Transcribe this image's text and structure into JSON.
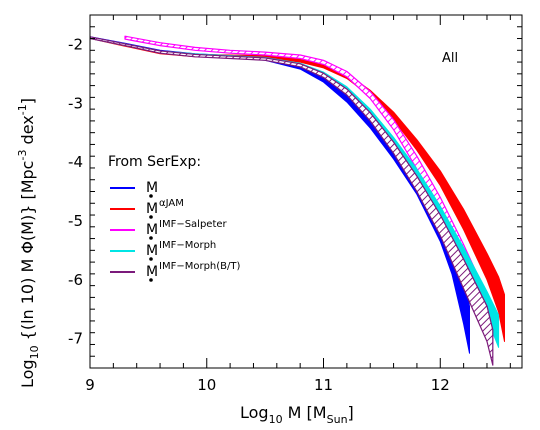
{
  "chart_data": {
    "type": "area",
    "panel_label": "All",
    "xlabel": {
      "base": "Log",
      "sub": "10",
      "rest": " M [M",
      "unit_sub": "Sun",
      "close": "]"
    },
    "ylabel": {
      "base": "Log",
      "sub": "10",
      "rest": " {(ln 10)  M  Φ(M)} [Mpc",
      "sup": "-3",
      "close": " dex",
      "sup2": "-1",
      "end": "]"
    },
    "xlim": [
      9.0,
      12.7
    ],
    "ylim": [
      -7.5,
      -1.5
    ],
    "xticks": [
      9,
      10,
      11,
      12
    ],
    "xtick_labels": [
      "9",
      "10",
      "11",
      "12"
    ],
    "yticks": [
      -2,
      -3,
      -4,
      -5,
      -6,
      -7
    ],
    "ytick_labels": [
      "-2",
      "-3",
      "-4",
      "-5",
      "-6",
      "-7"
    ],
    "legend_title": "From SerExp:",
    "legend_position": "left-middle",
    "series": [
      {
        "name": "M*",
        "label_main": "M",
        "label_sup": "",
        "color": "#0000ff",
        "style": "solid",
        "x": [
          9.0,
          9.3,
          9.6,
          9.9,
          10.2,
          10.5,
          10.8,
          11.0,
          11.2,
          11.4,
          11.6,
          11.8,
          12.0,
          12.1,
          12.2,
          12.25
        ],
        "upper": [
          -1.87,
          -1.98,
          -2.1,
          -2.16,
          -2.19,
          -2.24,
          -2.37,
          -2.55,
          -2.85,
          -3.22,
          -3.66,
          -4.15,
          -4.82,
          -5.28,
          -5.95,
          -6.45
        ],
        "lower": [
          -1.89,
          -2.0,
          -2.12,
          -2.18,
          -2.22,
          -2.27,
          -2.42,
          -2.64,
          -2.98,
          -3.42,
          -3.95,
          -4.55,
          -5.35,
          -5.9,
          -6.75,
          -7.25
        ]
      },
      {
        "name": "M*αJAM",
        "label_main": "M",
        "label_sup": "αJAM",
        "color": "#ff0000",
        "style": "solid",
        "x": [
          9.0,
          9.3,
          9.6,
          9.9,
          10.2,
          10.5,
          10.8,
          11.0,
          11.2,
          11.4,
          11.6,
          11.8,
          12.0,
          12.2,
          12.4,
          12.5,
          12.55
        ],
        "upper": [
          -1.88,
          -2.0,
          -2.12,
          -2.17,
          -2.18,
          -2.19,
          -2.25,
          -2.33,
          -2.5,
          -2.78,
          -3.15,
          -3.62,
          -4.15,
          -4.8,
          -5.55,
          -5.95,
          -6.25
        ],
        "lower": [
          -1.9,
          -2.03,
          -2.16,
          -2.21,
          -2.22,
          -2.23,
          -2.3,
          -2.4,
          -2.58,
          -2.88,
          -3.28,
          -3.8,
          -4.4,
          -5.15,
          -6.0,
          -6.55,
          -7.05
        ]
      },
      {
        "name": "M*IMF-Salpeter",
        "label_main": "M",
        "label_sup": "IMF−Salpeter",
        "color": "#ff00ff",
        "style": "hatched",
        "x": [
          9.3,
          9.6,
          9.9,
          10.2,
          10.5,
          10.8,
          11.0,
          11.2,
          11.4,
          11.6,
          11.8,
          12.0,
          12.2,
          12.35,
          12.45
        ],
        "upper": [
          -1.86,
          -1.97,
          -2.05,
          -2.1,
          -2.13,
          -2.18,
          -2.27,
          -2.46,
          -2.8,
          -3.28,
          -3.9,
          -4.6,
          -5.4,
          -6.05,
          -6.55
        ],
        "lower": [
          -1.91,
          -2.02,
          -2.1,
          -2.15,
          -2.18,
          -2.24,
          -2.34,
          -2.55,
          -2.92,
          -3.45,
          -4.12,
          -4.9,
          -5.8,
          -6.55,
          -7.1
        ]
      },
      {
        "name": "M*IMF-Morph",
        "label_main": "M",
        "label_sup": "IMF−Morph",
        "color": "#00e5e5",
        "style": "solid",
        "x": [
          9.0,
          9.3,
          9.6,
          9.9,
          10.2,
          10.5,
          10.8,
          11.0,
          11.2,
          11.4,
          11.6,
          11.8,
          12.0,
          12.2,
          12.4,
          12.5
        ],
        "upper": [
          -1.88,
          -1.99,
          -2.11,
          -2.16,
          -2.19,
          -2.22,
          -2.32,
          -2.47,
          -2.72,
          -3.1,
          -3.58,
          -4.12,
          -4.75,
          -5.45,
          -6.2,
          -6.6
        ],
        "lower": [
          -1.9,
          -2.02,
          -2.14,
          -2.19,
          -2.22,
          -2.25,
          -2.36,
          -2.52,
          -2.8,
          -3.2,
          -3.72,
          -4.3,
          -5.0,
          -5.8,
          -6.65,
          -7.15
        ]
      },
      {
        "name": "M*IMF-Morph(B/T)",
        "label_main": "M",
        "label_sup": "IMF−Morph(B/T)",
        "color": "#7b1a7b",
        "style": "hatched",
        "x": [
          9.0,
          9.3,
          9.6,
          9.9,
          10.2,
          10.5,
          10.8,
          11.0,
          11.2,
          11.4,
          11.6,
          11.8,
          12.0,
          12.2,
          12.4,
          12.45
        ],
        "upper": [
          -1.87,
          -1.99,
          -2.11,
          -2.17,
          -2.2,
          -2.23,
          -2.33,
          -2.49,
          -2.76,
          -3.16,
          -3.66,
          -4.24,
          -4.9,
          -5.65,
          -6.45,
          -6.85
        ],
        "lower": [
          -1.9,
          -2.02,
          -2.15,
          -2.21,
          -2.24,
          -2.27,
          -2.38,
          -2.56,
          -2.86,
          -3.3,
          -3.85,
          -4.5,
          -5.25,
          -6.15,
          -7.05,
          -7.45
        ]
      }
    ]
  }
}
